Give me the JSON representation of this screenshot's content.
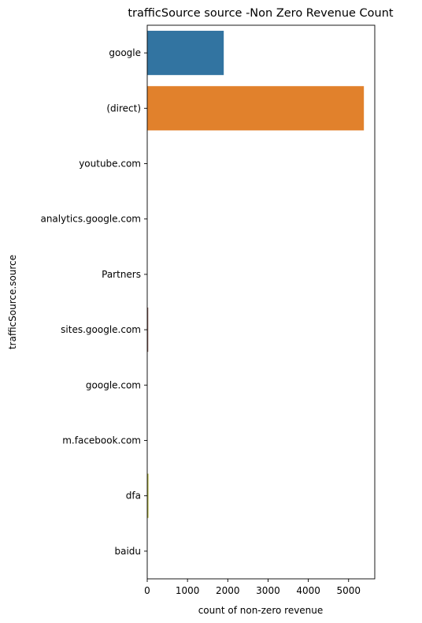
{
  "chart_data": {
    "type": "bar",
    "orientation": "horizontal",
    "title": "trafficSource source -Non Zero Revenue Count",
    "xlabel": "count of non-zero revenue",
    "ylabel": "trafficSource.source",
    "categories": [
      "google",
      "(direct)",
      "youtube.com",
      "analytics.google.com",
      "Partners",
      "sites.google.com",
      "google.com",
      "m.facebook.com",
      "dfa",
      "baidu"
    ],
    "values": [
      1900,
      5380,
      3,
      2,
      1,
      25,
      4,
      3,
      30,
      2
    ],
    "colors": [
      "#3274a1",
      "#e1812c",
      "#3a923a",
      "#c03d3e",
      "#9372b2",
      "#845b53",
      "#d684bd",
      "#7f7f7f",
      "#a9aa35",
      "#2eb1c4"
    ],
    "xticks": [
      0,
      1000,
      2000,
      3000,
      4000,
      5000
    ],
    "xticklabels": [
      "0",
      "1000",
      "2000",
      "3000",
      "4000",
      "5000"
    ],
    "xlim": [
      0,
      5650
    ],
    "grid": false,
    "legend": "none"
  }
}
